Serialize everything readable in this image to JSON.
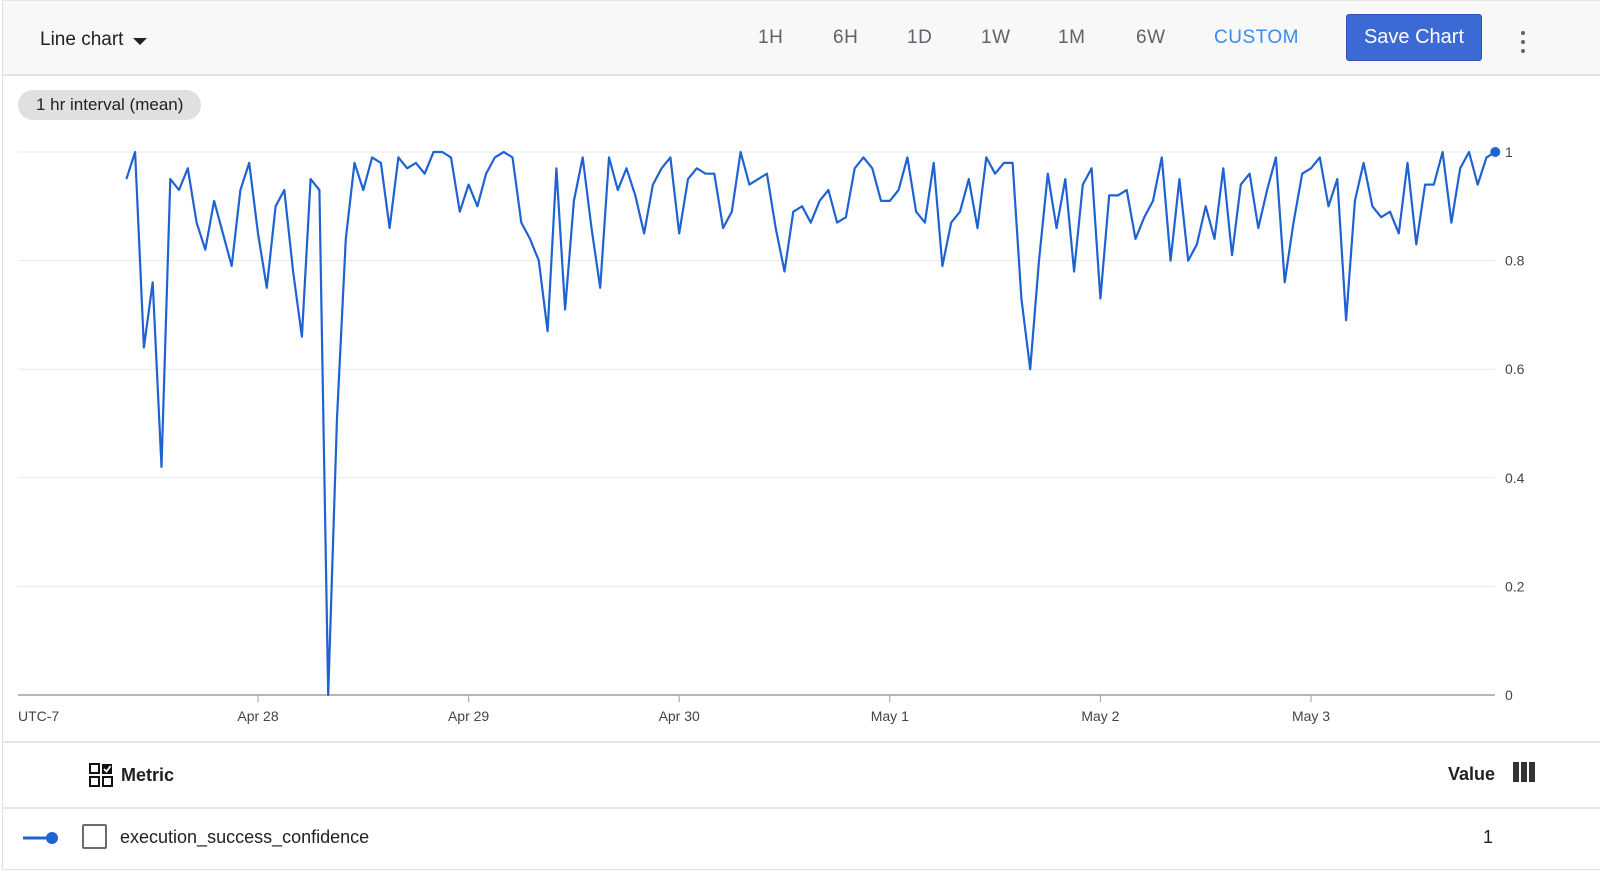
{
  "header": {
    "chart_type": "Line chart",
    "tabs": [
      {
        "label": "1H",
        "active": false
      },
      {
        "label": "6H",
        "active": false
      },
      {
        "label": "1D",
        "active": false
      },
      {
        "label": "1W",
        "active": false
      },
      {
        "label": "1M",
        "active": false
      },
      {
        "label": "6W",
        "active": false
      },
      {
        "label": "CUSTOM",
        "active": true
      }
    ],
    "save_label": "Save Chart",
    "more_icon": "more-vert-icon"
  },
  "chip": {
    "label": "1 hr interval (mean)"
  },
  "colors": {
    "series": "#1f62d2",
    "accent": "#3b8beb",
    "save_button": "#3c6ad4"
  },
  "chart_data": {
    "type": "line",
    "timezone_label": "UTC-7",
    "x_ticks": [
      "Apr 28",
      "Apr 29",
      "Apr 30",
      "May 1",
      "May 2",
      "May 3"
    ],
    "y_ticks": [
      "0",
      "0.2",
      "0.4",
      "0.6",
      "0.8",
      "1"
    ],
    "ylim": [
      0,
      1
    ],
    "grid": true,
    "y_axis_side": "right",
    "series": [
      {
        "name": "execution_success_confidence",
        "start": "Apr 27 09:00",
        "interval_hours": 1,
        "values": [
          0.95,
          1.0,
          0.64,
          0.76,
          0.42,
          0.95,
          0.93,
          0.97,
          0.87,
          0.82,
          0.91,
          0.85,
          0.79,
          0.93,
          0.98,
          0.85,
          0.75,
          0.9,
          0.93,
          0.78,
          0.66,
          0.95,
          0.93,
          0.0,
          0.51,
          0.84,
          0.98,
          0.93,
          0.99,
          0.98,
          0.86,
          0.99,
          0.97,
          0.98,
          0.96,
          1.0,
          1.0,
          0.99,
          0.89,
          0.94,
          0.9,
          0.96,
          0.99,
          1.0,
          0.99,
          0.87,
          0.84,
          0.8,
          0.67,
          0.97,
          0.71,
          0.91,
          0.99,
          0.86,
          0.75,
          0.99,
          0.93,
          0.97,
          0.92,
          0.85,
          0.94,
          0.97,
          0.99,
          0.85,
          0.95,
          0.97,
          0.96,
          0.96,
          0.86,
          0.89,
          1.0,
          0.94,
          0.95,
          0.96,
          0.86,
          0.78,
          0.89,
          0.9,
          0.87,
          0.91,
          0.93,
          0.87,
          0.88,
          0.97,
          0.99,
          0.97,
          0.91,
          0.91,
          0.93,
          0.99,
          0.89,
          0.87,
          0.98,
          0.79,
          0.87,
          0.89,
          0.95,
          0.86,
          0.99,
          0.96,
          0.98,
          0.98,
          0.73,
          0.6,
          0.8,
          0.96,
          0.86,
          0.95,
          0.78,
          0.94,
          0.97,
          0.73,
          0.92,
          0.92,
          0.93,
          0.84,
          0.88,
          0.91,
          0.99,
          0.8,
          0.95,
          0.8,
          0.83,
          0.9,
          0.84,
          0.97,
          0.81,
          0.94,
          0.96,
          0.86,
          0.93,
          0.99,
          0.76,
          0.87,
          0.96,
          0.97,
          0.99,
          0.9,
          0.95,
          0.69,
          0.91,
          0.98,
          0.9,
          0.88,
          0.89,
          0.85,
          0.98,
          0.83,
          0.94,
          0.94,
          1.0,
          0.87,
          0.97,
          1.0,
          0.94,
          0.99,
          1.0
        ]
      }
    ]
  },
  "legend": {
    "metric_header": "Metric",
    "value_header": "Value",
    "rows": [
      {
        "name": "execution_success_confidence",
        "value": "1"
      }
    ]
  }
}
